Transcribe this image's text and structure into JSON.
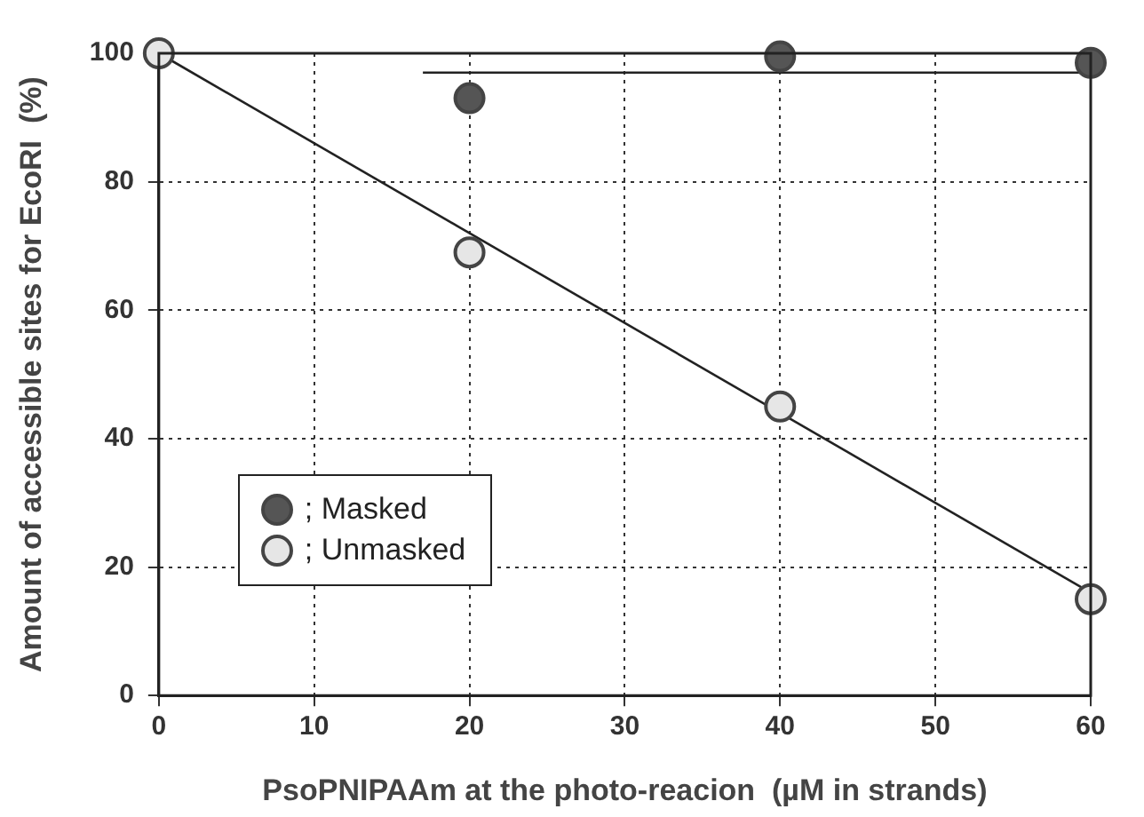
{
  "chart_data": {
    "type": "scatter",
    "xlabel": "PsoPNIPAAm at the photo-reacion  (µM in strands)",
    "ylabel": "Amount of accessible sites for EcoRI  (%)",
    "xlim": [
      0,
      60
    ],
    "xticks": [
      0,
      10,
      20,
      30,
      40,
      50,
      60
    ],
    "ylim": [
      0,
      100
    ],
    "yticks": [
      0,
      20,
      40,
      60,
      80,
      100
    ],
    "grid": true,
    "legend": "bottom left",
    "marker": "circle",
    "series": [
      {
        "name": "; Masked",
        "color": "#555555",
        "x": [
          20,
          40,
          60
        ],
        "values": [
          93,
          99.5,
          98.5
        ]
      },
      {
        "name": "; Unmasked",
        "color": "#e6e6e6",
        "x": [
          0,
          20,
          40,
          60
        ],
        "values": [
          100,
          69,
          45,
          15
        ]
      },
      {
        "type": "line",
        "marker": "none",
        "color": "#222222",
        "x": [
          17,
          60
        ],
        "values": [
          97,
          97
        ]
      },
      {
        "type": "line",
        "marker": "none",
        "color": "#222222",
        "x": [
          0,
          60
        ],
        "values": [
          100,
          16
        ]
      }
    ]
  }
}
